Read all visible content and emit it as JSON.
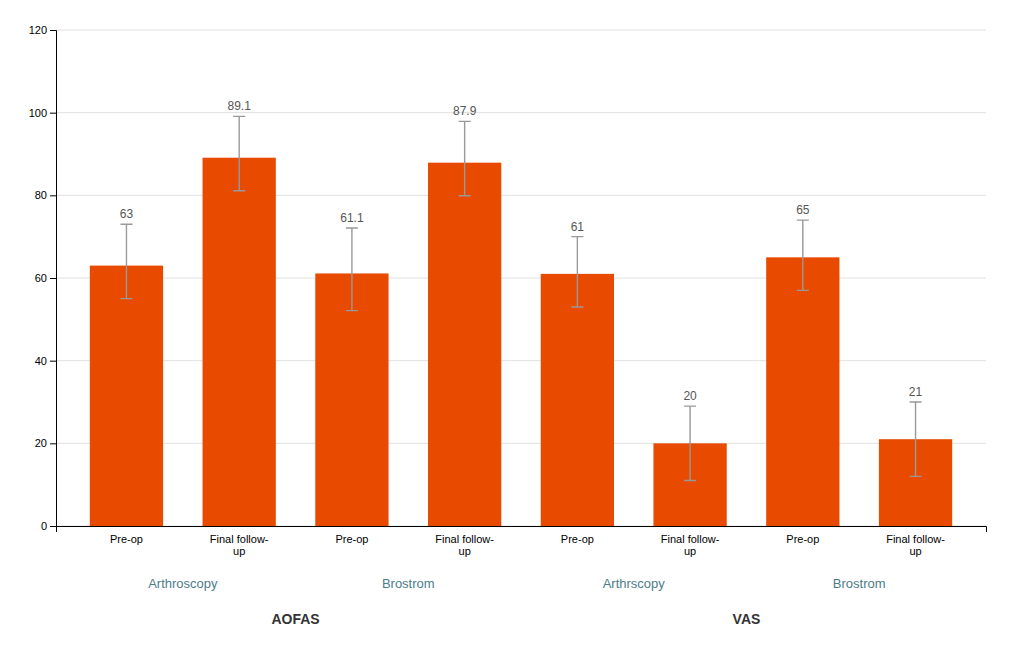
{
  "chart_data": {
    "type": "bar",
    "categories": [
      "Pre-op",
      "Final follow-\nup",
      "Pre-op",
      "Final follow-\nup",
      "Pre-op",
      "Final follow-\nup",
      "Pre-op",
      "Final follow-\nup"
    ],
    "values": [
      63,
      89.1,
      61.1,
      87.9,
      61,
      20,
      65,
      21
    ],
    "error_up": [
      10,
      10,
      11,
      10,
      9,
      9,
      9,
      9
    ],
    "error_down": [
      8,
      8,
      9,
      8,
      8,
      9,
      8,
      9
    ],
    "color": "#E84A00",
    "data_labels": true,
    "ylim": [
      0,
      120
    ],
    "yticks": [
      0,
      20,
      40,
      60,
      80,
      100,
      120
    ],
    "grid": true,
    "group_labels": [
      "Arthroscopy",
      "Brostrom",
      "Arthrscopy",
      "Brostrom"
    ],
    "section_labels": [
      "AOFAS",
      "VAS"
    ]
  }
}
